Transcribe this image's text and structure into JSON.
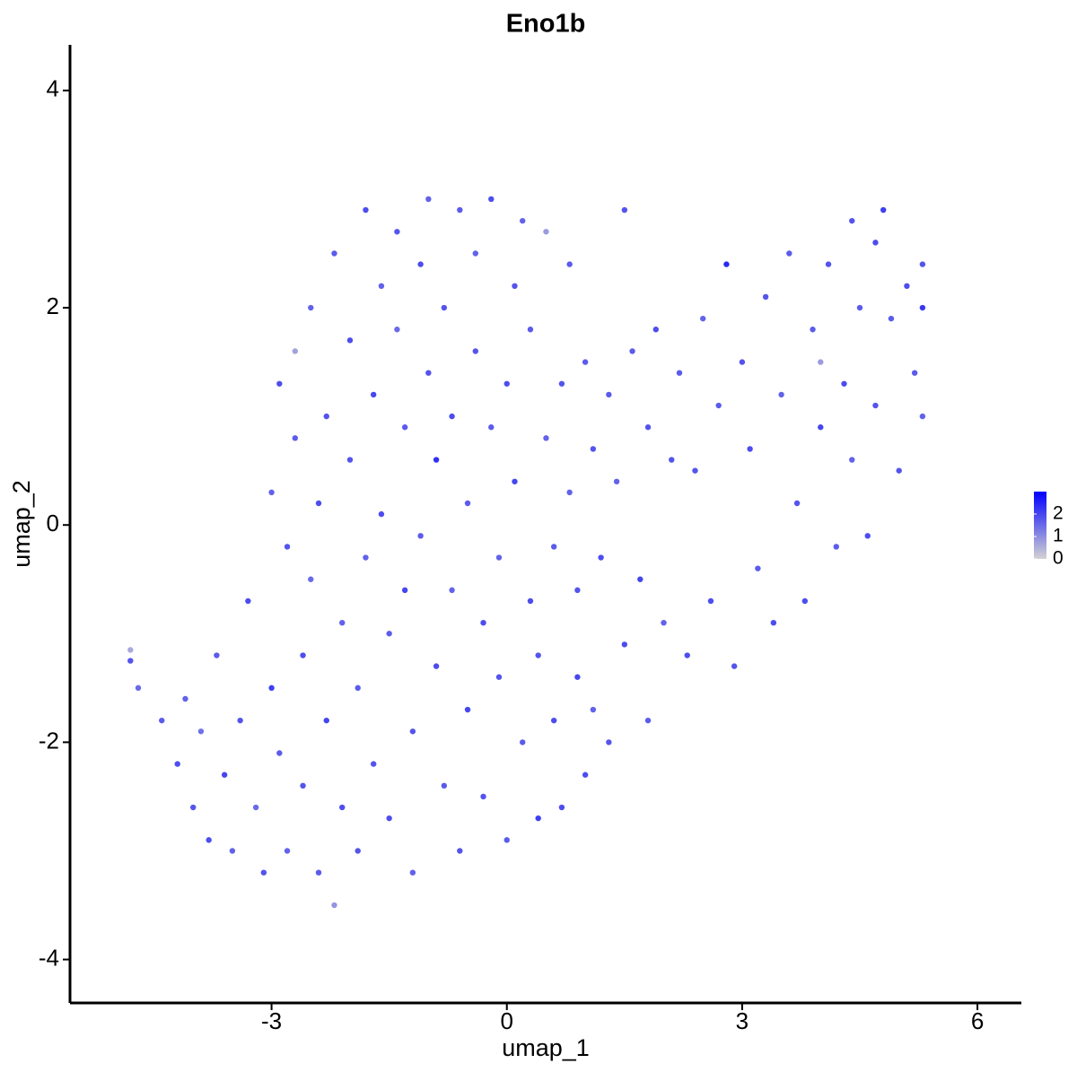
{
  "chart_data": {
    "type": "scatter",
    "title": "Eno1b",
    "x_label": "umap_1",
    "y_label": "umap_2",
    "xlim": [
      -5.57,
      6.56
    ],
    "ylim": [
      -4.4,
      4.42
    ],
    "xticks": [
      -3,
      0,
      3,
      6
    ],
    "yticks": [
      -4,
      -2,
      0,
      2,
      4
    ],
    "color_low": "#d3d3d3",
    "color_high": "#0000ff",
    "colorbar_lim": [
      0,
      3
    ],
    "colorbar_ticks": [
      0,
      1,
      2
    ],
    "x": [
      -4.8,
      -4.8,
      -4.7,
      -4.4,
      -4.2,
      -4.1,
      -4.0,
      -3.9,
      -3.8,
      -3.7,
      -3.6,
      -3.5,
      -3.4,
      -3.3,
      -3.2,
      -3.1,
      -3.0,
      -3.0,
      -2.9,
      -2.9,
      -2.8,
      -2.8,
      -2.7,
      -2.7,
      -2.6,
      -2.6,
      -2.5,
      -2.5,
      -2.4,
      -2.4,
      -2.3,
      -2.3,
      -2.2,
      -2.2,
      -2.1,
      -2.1,
      -2.0,
      -2.0,
      -1.9,
      -1.9,
      -1.8,
      -1.8,
      -1.7,
      -1.7,
      -1.6,
      -1.6,
      -1.5,
      -1.5,
      -1.4,
      -1.4,
      -1.3,
      -1.3,
      -1.2,
      -1.2,
      -1.1,
      -1.1,
      -1.0,
      -1.0,
      -0.9,
      -0.9,
      -0.8,
      -0.8,
      -0.7,
      -0.7,
      -0.6,
      -0.6,
      -0.5,
      -0.5,
      -0.4,
      -0.4,
      -0.3,
      -0.3,
      -0.2,
      -0.2,
      -0.1,
      -0.1,
      0.0,
      0.0,
      0.1,
      0.1,
      0.2,
      0.2,
      0.3,
      0.3,
      0.4,
      0.4,
      0.5,
      0.5,
      0.6,
      0.6,
      0.7,
      0.7,
      0.8,
      0.8,
      0.9,
      0.9,
      1.0,
      1.0,
      1.1,
      1.1,
      1.2,
      1.3,
      1.3,
      1.4,
      1.5,
      1.5,
      1.6,
      1.7,
      1.8,
      1.8,
      1.9,
      2.0,
      2.1,
      2.2,
      2.3,
      2.4,
      2.5,
      2.6,
      2.7,
      2.8,
      2.9,
      3.0,
      3.1,
      3.2,
      3.3,
      3.4,
      3.5,
      3.6,
      3.7,
      3.8,
      3.9,
      4.0,
      4.0,
      4.1,
      4.2,
      4.3,
      4.4,
      4.4,
      4.5,
      4.6,
      4.7,
      4.7,
      4.8,
      4.9,
      5.0,
      5.1,
      5.2,
      5.3,
      5.3,
      5.3
    ],
    "y": [
      -1.25,
      -1.15,
      -1.5,
      -1.8,
      -2.2,
      -1.6,
      -2.6,
      -1.9,
      -2.9,
      -1.2,
      -2.3,
      -3.0,
      -1.8,
      -0.7,
      -2.6,
      -3.2,
      -1.5,
      0.3,
      -2.1,
      1.3,
      -0.2,
      -3.0,
      0.8,
      1.6,
      -1.2,
      -2.4,
      2.0,
      -0.5,
      0.2,
      -3.2,
      -1.8,
      1.0,
      -3.5,
      2.5,
      -2.6,
      -0.9,
      1.7,
      0.6,
      -1.5,
      -3.0,
      2.9,
      -0.3,
      1.2,
      -2.2,
      2.2,
      0.1,
      -1.0,
      -2.7,
      1.8,
      2.7,
      -0.6,
      0.9,
      -1.9,
      -3.2,
      2.4,
      -0.1,
      1.4,
      3.0,
      0.6,
      -1.3,
      -2.4,
      2.0,
      -0.6,
      1.0,
      2.9,
      -3.0,
      -1.7,
      0.2,
      1.6,
      2.5,
      -0.9,
      -2.5,
      0.9,
      3.0,
      -1.4,
      -0.3,
      1.3,
      -2.9,
      2.2,
      0.4,
      -2.0,
      2.8,
      -0.7,
      1.8,
      -1.2,
      -2.7,
      0.8,
      2.7,
      -1.8,
      -0.2,
      1.3,
      -2.6,
      0.3,
      2.4,
      -1.4,
      -0.6,
      1.5,
      -2.3,
      0.7,
      -1.7,
      -0.3,
      1.2,
      -2.0,
      0.4,
      -1.1,
      2.9,
      1.6,
      -0.5,
      0.9,
      -1.8,
      1.8,
      -0.9,
      0.6,
      1.4,
      -1.2,
      0.5,
      1.9,
      -0.7,
      1.1,
      2.4,
      -1.3,
      1.5,
      0.7,
      -0.4,
      2.1,
      -0.9,
      1.2,
      2.5,
      0.2,
      -0.7,
      1.8,
      0.9,
      1.5,
      2.4,
      -0.2,
      1.3,
      0.6,
      2.8,
      2.0,
      -0.1,
      1.1,
      2.6,
      2.9,
      1.9,
      0.5,
      2.2,
      1.4,
      2.0,
      1.0,
      2.4
    ],
    "values": [
      1.8,
      0.6,
      1.5,
      1.7,
      1.9,
      1.6,
      1.8,
      1.4,
      1.9,
      1.7,
      2.0,
      1.6,
      1.8,
      1.9,
      1.5,
      1.8,
      2.1,
      1.6,
      1.7,
      1.9,
      1.8,
      1.6,
      1.7,
      0.7,
      1.9,
      1.8,
      1.6,
      1.5,
      1.9,
      1.7,
      2.0,
      1.8,
      0.9,
      1.7,
      1.9,
      1.6,
      1.9,
      1.8,
      1.7,
      1.8,
      1.9,
      1.6,
      2.0,
      1.8,
      1.6,
      1.9,
      1.7,
      1.9,
      1.5,
      1.8,
      2.0,
      1.7,
      1.8,
      1.6,
      1.9,
      1.7,
      1.8,
      1.6,
      2.3,
      1.9,
      1.7,
      1.8,
      1.6,
      1.9,
      1.7,
      1.8,
      2.0,
      1.7,
      1.8,
      1.6,
      1.9,
      1.8,
      1.7,
      1.9,
      1.8,
      1.6,
      1.9,
      1.7,
      1.8,
      2.0,
      1.7,
      1.6,
      1.9,
      1.7,
      1.8,
      2.1,
      1.6,
      0.8,
      1.9,
      1.7,
      1.8,
      1.9,
      1.6,
      1.7,
      2.0,
      1.8,
      1.7,
      1.9,
      1.8,
      1.6,
      1.9,
      1.7,
      1.8,
      1.6,
      1.9,
      1.8,
      1.7,
      2.0,
      1.8,
      1.7,
      1.9,
      1.6,
      1.8,
      1.7,
      1.9,
      1.8,
      1.6,
      1.9,
      1.7,
      2.4,
      1.8,
      1.8,
      1.9,
      1.7,
      1.8,
      1.9,
      1.6,
      1.7,
      1.8,
      1.9,
      1.7,
      2.0,
      0.8,
      1.8,
      1.7,
      1.9,
      1.6,
      1.8,
      1.7,
      1.9,
      1.8,
      1.9,
      2.1,
      1.7,
      1.8,
      1.9,
      1.7,
      2.2,
      1.6,
      1.8
    ]
  }
}
